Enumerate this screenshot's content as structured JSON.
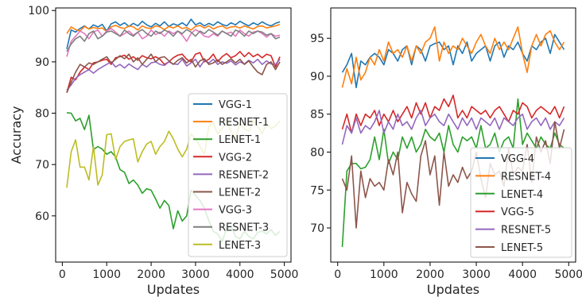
{
  "colors": {
    "blue": "#1f77b4",
    "orange": "#ff7f0e",
    "green": "#2ca02c",
    "red": "#d62728",
    "purple": "#9467bd",
    "brown": "#8c564b",
    "pink": "#e377c2",
    "gray": "#7f7f7f",
    "olive": "#bcbd22"
  },
  "chart_data": [
    {
      "type": "line",
      "title": "",
      "xlabel": "Updates",
      "ylabel": "Accuracy",
      "xlim": [
        -150,
        5150
      ],
      "ylim": [
        51,
        100.5
      ],
      "xticks": [
        0,
        1000,
        2000,
        3000,
        4000,
        5000
      ],
      "yticks": [
        60,
        70,
        80,
        90,
        100
      ],
      "legend_position": "bottom-right",
      "grid": false,
      "x": [
        100,
        200,
        300,
        400,
        500,
        600,
        700,
        800,
        900,
        1000,
        1100,
        1200,
        1300,
        1400,
        1500,
        1600,
        1700,
        1800,
        1900,
        2000,
        2100,
        2200,
        2300,
        2400,
        2500,
        2600,
        2700,
        2800,
        2900,
        3000,
        3100,
        3200,
        3300,
        3400,
        3500,
        3600,
        3700,
        3800,
        3900,
        4000,
        4100,
        4200,
        4300,
        4400,
        4500,
        4600,
        4700,
        4800,
        4900
      ],
      "series": [
        {
          "name": "VGG-1",
          "color": "#1f77b4",
          "values": [
            92.5,
            96.2,
            95.8,
            96.5,
            97.0,
            96.4,
            97.2,
            96.8,
            97.3,
            96.0,
            97.4,
            97.8,
            97.1,
            97.6,
            96.9,
            97.5,
            97.0,
            97.9,
            97.2,
            96.8,
            97.5,
            97.0,
            97.8,
            96.9,
            97.4,
            97.1,
            97.6,
            97.0,
            98.3,
            97.2,
            97.6,
            97.0,
            97.5,
            97.1,
            97.8,
            97.3,
            97.0,
            97.6,
            97.2,
            97.9,
            97.4,
            97.0,
            97.6,
            97.2,
            97.8,
            97.3,
            97.0,
            97.5,
            97.8
          ]
        },
        {
          "name": "RESNET-1",
          "color": "#ff7f0e",
          "values": [
            95.5,
            96.8,
            96.3,
            96.0,
            96.9,
            96.4,
            96.7,
            96.5,
            96.6,
            95.9,
            96.8,
            97.1,
            96.7,
            96.5,
            97.0,
            96.8,
            96.2,
            97.0,
            96.6,
            96.5,
            97.0,
            96.8,
            96.3,
            96.9,
            96.6,
            97.0,
            96.5,
            96.7,
            96.2,
            96.9,
            97.1,
            96.6,
            97.0,
            96.4,
            96.8,
            97.0,
            96.5,
            96.8,
            96.9,
            96.6,
            97.0,
            96.7,
            96.4,
            96.9,
            97.0,
            96.6,
            96.8,
            97.0,
            97.3
          ]
        },
        {
          "name": "LENET-1",
          "color": "#2ca02c",
          "values": [
            80.1,
            80.0,
            78.5,
            79.0,
            76.8,
            79.6,
            72.9,
            73.5,
            73.0,
            72.0,
            72.5,
            71.5,
            69.0,
            68.5,
            66.3,
            67.0,
            66.0,
            64.4,
            65.3,
            65.0,
            63.3,
            61.5,
            63.0,
            62.0,
            57.5,
            61.0,
            59.0,
            60.0,
            65.0,
            64.0,
            63.0,
            61.5,
            59.0,
            57.0,
            56.5,
            55.0,
            57.5,
            58.0,
            56.0,
            55.5,
            57.0,
            56.0,
            55.5,
            56.8,
            57.0,
            56.5,
            57.3,
            56.2,
            57.0
          ]
        },
        {
          "name": "VGG-2",
          "color": "#d62728",
          "values": [
            84.0,
            87.0,
            86.5,
            88.0,
            89.0,
            88.5,
            89.8,
            90.0,
            90.3,
            90.5,
            89.5,
            90.8,
            91.0,
            91.3,
            90.5,
            91.0,
            90.3,
            91.2,
            90.8,
            90.6,
            91.0,
            90.5,
            89.5,
            90.0,
            90.8,
            91.3,
            91.5,
            90.5,
            90.0,
            91.5,
            91.8,
            90.0,
            90.5,
            91.5,
            90.0,
            91.0,
            91.6,
            90.8,
            91.2,
            92.0,
            91.0,
            91.8,
            91.0,
            91.5,
            90.8,
            91.5,
            91.2,
            89.0,
            91.0
          ]
        },
        {
          "name": "RESNET-2",
          "color": "#9467bd",
          "values": [
            84.5,
            85.5,
            86.8,
            87.5,
            88.0,
            88.5,
            87.8,
            88.5,
            89.0,
            89.5,
            90.0,
            89.0,
            89.5,
            88.8,
            89.6,
            89.0,
            88.5,
            89.5,
            89.0,
            89.8,
            90.0,
            89.5,
            89.3,
            90.0,
            89.6,
            89.5,
            90.5,
            89.2,
            89.8,
            90.5,
            89.0,
            90.3,
            89.8,
            90.5,
            89.5,
            90.0,
            89.7,
            90.2,
            89.4,
            90.0,
            89.6,
            90.3,
            89.8,
            90.5,
            89.5,
            90.2,
            89.6,
            89.5,
            90.5
          ]
        },
        {
          "name": "LENET-2",
          "color": "#8c564b",
          "values": [
            84.0,
            86.0,
            88.0,
            89.5,
            89.0,
            89.8,
            89.5,
            90.0,
            90.5,
            91.0,
            89.8,
            90.5,
            91.2,
            90.6,
            91.5,
            90.0,
            90.8,
            89.5,
            90.5,
            91.5,
            90.0,
            90.8,
            91.0,
            90.2,
            89.5,
            90.3,
            90.8,
            89.8,
            90.5,
            89.0,
            90.2,
            90.6,
            89.5,
            89.8,
            90.4,
            89.5,
            90.0,
            90.6,
            89.8,
            90.5,
            89.5,
            90.2,
            89.0,
            88.0,
            87.5,
            89.5,
            90.0,
            88.5,
            90.0
          ]
        },
        {
          "name": "VGG-3",
          "color": "#e377c2",
          "values": [
            91.0,
            94.0,
            95.0,
            96.0,
            95.5,
            94.5,
            95.8,
            96.2,
            95.0,
            96.0,
            96.5,
            95.8,
            95.0,
            95.5,
            96.0,
            95.2,
            95.8,
            94.5,
            95.0,
            96.2,
            95.3,
            95.8,
            95.0,
            96.0,
            95.5,
            96.0,
            95.2,
            94.0,
            95.5,
            96.3,
            95.8,
            95.0,
            94.8,
            95.5,
            95.0,
            96.0,
            95.5,
            95.8,
            95.0,
            96.2,
            95.5,
            95.0,
            95.8,
            96.0,
            95.5,
            94.8,
            95.5,
            95.0,
            95.2
          ]
        },
        {
          "name": "RESNET-3",
          "color": "#7f7f7f",
          "values": [
            92.0,
            93.5,
            94.5,
            95.0,
            94.0,
            95.5,
            96.0,
            94.5,
            95.0,
            95.8,
            96.0,
            95.5,
            95.0,
            96.2,
            95.5,
            95.0,
            95.8,
            96.3,
            95.5,
            95.0,
            96.0,
            95.5,
            96.2,
            95.8,
            95.0,
            96.0,
            95.5,
            96.3,
            95.8,
            95.0,
            96.0,
            95.5,
            96.3,
            95.8,
            95.2,
            96.0,
            95.5,
            95.0,
            96.2,
            95.8,
            95.0,
            96.0,
            95.5,
            96.0,
            95.8,
            95.2,
            95.5,
            94.5,
            94.8
          ]
        },
        {
          "name": "LENET-3",
          "color": "#bcbd22",
          "values": [
            65.5,
            72.5,
            74.8,
            69.5,
            69.5,
            67.0,
            73.5,
            66.0,
            68.0,
            75.8,
            76.0,
            71.0,
            73.5,
            74.5,
            74.8,
            75.0,
            70.5,
            72.5,
            74.0,
            74.5,
            72.0,
            73.5,
            74.5,
            76.5,
            75.0,
            73.0,
            71.5,
            73.0,
            76.0,
            75.0,
            73.5,
            72.0,
            77.5,
            78.0,
            76.0,
            77.0,
            78.5,
            76.5,
            75.0,
            78.0,
            77.0,
            76.5,
            78.5,
            77.5,
            76.0,
            78.0,
            77.0,
            77.5,
            78.5
          ]
        }
      ]
    },
    {
      "type": "line",
      "title": "",
      "xlabel": "Updates",
      "ylabel": "",
      "xlim": [
        -150,
        5150
      ],
      "ylim": [
        65.5,
        99
      ],
      "xticks": [
        0,
        1000,
        2000,
        3000,
        4000,
        5000
      ],
      "yticks": [
        70,
        75,
        80,
        85,
        90,
        95
      ],
      "legend_position": "bottom-right",
      "grid": false,
      "x": [
        100,
        200,
        300,
        400,
        500,
        600,
        700,
        800,
        900,
        1000,
        1100,
        1200,
        1300,
        1400,
        1500,
        1600,
        1700,
        1800,
        1900,
        2000,
        2100,
        2200,
        2300,
        2400,
        2500,
        2600,
        2700,
        2800,
        2900,
        3000,
        3100,
        3200,
        3300,
        3400,
        3500,
        3600,
        3700,
        3800,
        3900,
        4000,
        4100,
        4200,
        4300,
        4400,
        4500,
        4600,
        4700,
        4800,
        4900
      ],
      "series": [
        {
          "name": "VGG-4",
          "color": "#1f77b4",
          "values": [
            90.5,
            91.5,
            93.0,
            88.5,
            92.0,
            91.5,
            92.5,
            93.0,
            92.5,
            91.5,
            93.5,
            93.0,
            92.0,
            93.5,
            94.0,
            91.5,
            94.0,
            93.5,
            92.0,
            94.0,
            94.3,
            94.5,
            93.5,
            94.0,
            91.5,
            94.0,
            93.0,
            94.5,
            92.0,
            93.0,
            93.5,
            94.0,
            92.0,
            94.0,
            94.5,
            92.5,
            94.0,
            93.5,
            94.5,
            93.0,
            92.0,
            94.0,
            93.5,
            94.5,
            95.0,
            93.0,
            95.5,
            94.5,
            93.5
          ]
        },
        {
          "name": "RESNET-4",
          "color": "#ff7f0e",
          "values": [
            88.5,
            91.0,
            89.0,
            92.5,
            89.5,
            90.5,
            92.5,
            91.5,
            93.5,
            92.0,
            94.5,
            93.0,
            93.5,
            92.5,
            94.0,
            92.0,
            94.0,
            93.0,
            94.5,
            95.0,
            96.5,
            92.0,
            94.5,
            93.0,
            94.0,
            93.5,
            95.0,
            94.0,
            93.0,
            94.5,
            95.5,
            94.0,
            93.0,
            95.0,
            93.5,
            94.5,
            93.5,
            95.0,
            96.5,
            93.0,
            90.5,
            94.0,
            95.5,
            94.0,
            95.5,
            96.0,
            94.5,
            93.5,
            94.5
          ]
        },
        {
          "name": "LENET-4",
          "color": "#2ca02c",
          "values": [
            67.5,
            77.5,
            78.5,
            78.5,
            77.8,
            78.0,
            79.0,
            82.0,
            79.0,
            83.0,
            78.5,
            80.0,
            79.0,
            82.0,
            80.5,
            82.0,
            80.0,
            81.0,
            83.0,
            82.0,
            81.5,
            82.5,
            80.0,
            83.5,
            81.0,
            80.0,
            82.0,
            81.5,
            82.0,
            80.5,
            83.5,
            80.5,
            81.0,
            82.5,
            80.0,
            81.5,
            82.0,
            80.5,
            87.0,
            81.0,
            82.5,
            81.5,
            80.5,
            82.0,
            81.0,
            80.5,
            82.5,
            81.0,
            80.5
          ]
        },
        {
          "name": "VGG-5",
          "color": "#d62728",
          "values": [
            83.0,
            85.0,
            82.5,
            85.0,
            83.5,
            85.0,
            84.5,
            85.5,
            83.5,
            85.0,
            84.0,
            85.5,
            84.0,
            85.0,
            86.0,
            84.5,
            86.5,
            85.0,
            86.5,
            84.5,
            86.0,
            85.5,
            87.0,
            86.0,
            87.5,
            84.5,
            85.5,
            84.5,
            86.0,
            85.5,
            85.0,
            85.5,
            84.5,
            85.5,
            86.0,
            85.0,
            84.0,
            85.5,
            85.0,
            86.5,
            86.0,
            84.5,
            85.5,
            86.0,
            85.5,
            85.0,
            86.0,
            84.5,
            86.0
          ]
        },
        {
          "name": "RESNET-5",
          "color": "#9467bd",
          "values": [
            81.0,
            83.5,
            82.5,
            84.5,
            82.5,
            83.5,
            83.0,
            84.0,
            85.5,
            82.5,
            84.0,
            83.0,
            85.0,
            83.5,
            84.0,
            83.0,
            84.5,
            85.5,
            83.5,
            84.5,
            85.0,
            84.0,
            83.5,
            85.0,
            84.0,
            83.0,
            84.5,
            83.5,
            84.5,
            83.0,
            84.5,
            84.0,
            83.5,
            84.5,
            83.0,
            84.5,
            84.0,
            83.5,
            84.5,
            85.0,
            83.0,
            84.0,
            84.5,
            83.5,
            84.5,
            83.0,
            84.0,
            83.5,
            84.5
          ]
        },
        {
          "name": "LENET-5",
          "color": "#8c564b",
          "values": [
            76.5,
            75.0,
            79.5,
            70.0,
            77.5,
            74.0,
            76.5,
            75.5,
            76.0,
            75.0,
            79.0,
            77.0,
            80.0,
            72.0,
            76.0,
            74.5,
            73.5,
            79.5,
            81.5,
            77.0,
            79.5,
            73.0,
            80.0,
            75.5,
            77.0,
            76.0,
            78.0,
            76.5,
            77.5,
            80.0,
            76.5,
            74.0,
            78.5,
            77.0,
            77.5,
            75.5,
            80.5,
            77.0,
            78.0,
            77.5,
            81.0,
            76.0,
            82.0,
            80.0,
            81.5,
            78.5,
            84.0,
            80.5,
            83.0
          ]
        }
      ]
    }
  ]
}
